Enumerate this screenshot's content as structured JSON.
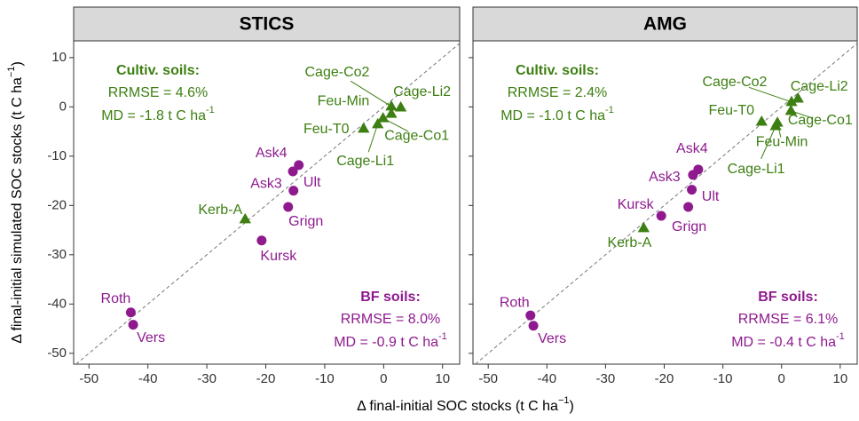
{
  "chart_data": [
    {
      "type": "scatter",
      "title": "STICS",
      "xlim": [
        -52.6,
        12.9
      ],
      "ylim": [
        -52.2,
        13.4
      ],
      "xticks": [
        -50,
        -40,
        -30,
        -20,
        -10,
        0,
        10
      ],
      "yticks": [
        -50,
        -40,
        -30,
        -20,
        -10,
        0,
        10
      ],
      "diagonal": true,
      "ylabel": {
        "text": "Δ final-initial simulated SOC stocks (t C ha",
        "sup": "−1",
        "end": ")"
      },
      "xlabel": {
        "text": "Δ final-initial SOC stocks (t C ha",
        "sup": "−1",
        "end": ")"
      },
      "series": [
        {
          "name": "Cultiv. soils:",
          "color": "#3d7f12",
          "marker": "triangle",
          "labels": [
            "Cage-Co2",
            "Cage-Li2",
            "Feu-Min",
            "Cage-Co1",
            "Feu-T0",
            "Cage-Li1",
            "Kerb-A"
          ],
          "x": [
            1.3,
            2.9,
            1.3,
            -0.1,
            -3.4,
            -1.0,
            -23.5
          ],
          "values": [
            0.1,
            -0.1,
            -1.4,
            -2.3,
            -4.4,
            -3.5,
            -22.8
          ],
          "rrmse": "RRMSE = 4.6%",
          "md": "MD = -1.8 t C ha",
          "md_sup": "-1"
        },
        {
          "name": "BF soils:",
          "color": "#8e1a8e",
          "marker": "circle",
          "labels": [
            "Ask4",
            "Ask3",
            "Ult",
            "Grign",
            "Kursk",
            "Roth",
            "Vers"
          ],
          "x": [
            -14.4,
            -15.4,
            -15.3,
            -16.2,
            -20.7,
            -42.9,
            -42.5
          ],
          "values": [
            -11.8,
            -13.1,
            -17.0,
            -20.3,
            -27.1,
            -41.7,
            -44.2
          ],
          "rrmse": "RRMSE = 8.0%",
          "md": "MD = -0.9 t C ha",
          "md_sup": "-1"
        }
      ]
    },
    {
      "type": "scatter",
      "title": "AMG",
      "xlim": [
        -52.6,
        12.9
      ],
      "ylim": [
        -52.2,
        13.4
      ],
      "xticks": [
        -50,
        -40,
        -30,
        -20,
        -10,
        0,
        10
      ],
      "yticks": [
        -50,
        -40,
        -30,
        -20,
        -10,
        0,
        10
      ],
      "diagonal": true,
      "series": [
        {
          "name": "Cultiv. soils:",
          "color": "#3d7f12",
          "marker": "triangle",
          "labels": [
            "Cage-Co2",
            "Cage-Li2",
            "Feu-Min",
            "Cage-Co1",
            "Feu-T0",
            "Cage-Li1",
            "Kerb-A"
          ],
          "x": [
            1.7,
            2.8,
            -0.7,
            1.6,
            -3.4,
            -1.0,
            -23.5
          ],
          "values": [
            1.0,
            1.7,
            -3.2,
            -0.8,
            -3.0,
            -3.9,
            -24.6
          ],
          "rrmse": "RRMSE = 2.4%",
          "md": "MD = -1.0 t C ha",
          "md_sup": "-1"
        },
        {
          "name": "BF soils:",
          "color": "#8e1a8e",
          "marker": "circle",
          "labels": [
            "Ask4",
            "Ask3",
            "Ult",
            "Grign",
            "Kursk",
            "Roth",
            "Vers"
          ],
          "x": [
            -14.2,
            -15.1,
            -15.3,
            -15.9,
            -20.5,
            -42.8,
            -42.3
          ],
          "values": [
            -12.7,
            -13.8,
            -16.8,
            -20.3,
            -22.1,
            -42.3,
            -44.4
          ],
          "rrmse": "RRMSE = 6.1%",
          "md": "MD = -0.4 t C ha",
          "md_sup": "-1"
        }
      ]
    }
  ]
}
